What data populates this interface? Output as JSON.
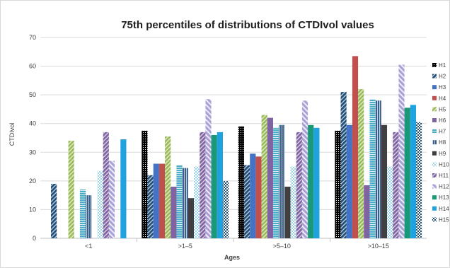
{
  "chart_data": {
    "type": "bar",
    "title": "75th percentiles of distributions of CTDIvol values",
    "xlabel": "Ages",
    "ylabel": "CTDIvol",
    "ylim": [
      0,
      70
    ],
    "yticks": [
      "0",
      "10",
      "20",
      "30",
      "40",
      "50",
      "60",
      "70"
    ],
    "categories": [
      "<1",
      ">1–5",
      ">5–10",
      ">10–15"
    ],
    "grid": true,
    "legend_position": "right",
    "series": [
      {
        "name": "H1",
        "color": "#000000",
        "pattern": "dots-dark",
        "values": [
          null,
          37.5,
          39.0,
          37.5
        ]
      },
      {
        "name": "H2",
        "color": "#1f4e79",
        "pattern": "diag",
        "values": [
          19.0,
          22.0,
          25.5,
          51.0
        ]
      },
      {
        "name": "H3",
        "color": "#4472c4",
        "pattern": "solid",
        "values": [
          null,
          26.0,
          29.5,
          39.5
        ]
      },
      {
        "name": "H4",
        "color": "#c0504d",
        "pattern": "solid",
        "values": [
          null,
          26.0,
          28.5,
          63.5
        ]
      },
      {
        "name": "H5",
        "color": "#9bbb59",
        "pattern": "diag",
        "values": [
          34.0,
          35.5,
          43.0,
          52.0
        ]
      },
      {
        "name": "H6",
        "color": "#8064a2",
        "pattern": "solid",
        "values": [
          null,
          18.0,
          42.0,
          18.5
        ]
      },
      {
        "name": "H7",
        "color": "#4bacc6",
        "pattern": "hlines",
        "values": [
          17.0,
          25.5,
          38.5,
          48.5
        ]
      },
      {
        "name": "H8",
        "color": "#17375e",
        "pattern": "vlines",
        "values": [
          15.0,
          24.5,
          39.5,
          48.0
        ]
      },
      {
        "name": "H9",
        "color": "#404040",
        "pattern": "solid",
        "values": [
          null,
          14.0,
          18.0,
          39.5
        ]
      },
      {
        "name": "H10",
        "color": "#4bacc6",
        "pattern": "weave",
        "values": [
          23.5,
          25.0,
          25.0,
          25.0
        ]
      },
      {
        "name": "H11",
        "color": "#8064a2",
        "pattern": "diag",
        "values": [
          37.0,
          37.0,
          37.0,
          37.0
        ]
      },
      {
        "name": "H12",
        "color": "#8064a2",
        "pattern": "wide-diag",
        "values": [
          27.0,
          48.5,
          48.0,
          60.5
        ]
      },
      {
        "name": "H13",
        "color": "#1a9979",
        "pattern": "solid",
        "values": [
          null,
          36.0,
          39.5,
          45.5
        ]
      },
      {
        "name": "H14",
        "color": "#1fa2e0",
        "pattern": "solid",
        "values": [
          34.5,
          37.0,
          38.5,
          46.5
        ]
      },
      {
        "name": "H15",
        "color": "#1f4e79",
        "pattern": "check",
        "values": [
          null,
          20.0,
          null,
          40.5
        ]
      }
    ]
  }
}
